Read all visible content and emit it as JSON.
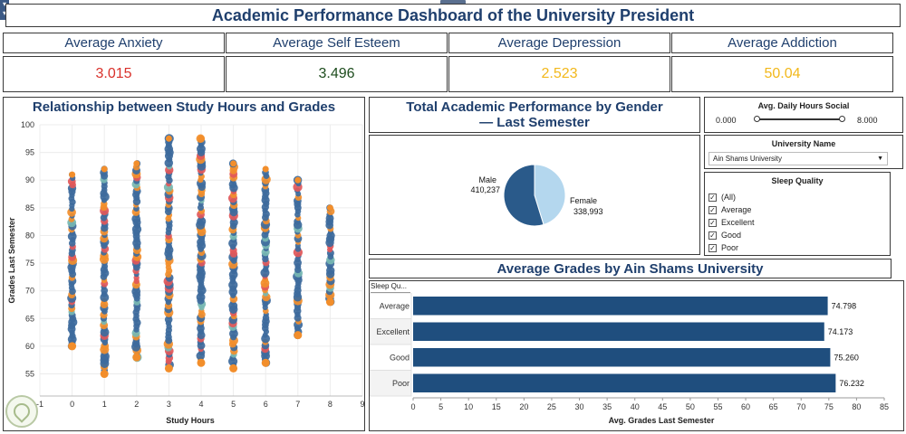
{
  "dashboard": {
    "title": "Academic Performance Dashboard of the University President"
  },
  "kpis": [
    {
      "label": "Average Anxiety",
      "value": "3.015",
      "color": "#d9312b"
    },
    {
      "label": "Average Self Esteem",
      "value": "3.496",
      "color": "#1e4d1e"
    },
    {
      "label": "Average Depression",
      "value": "2.523",
      "color": "#f2b81b"
    },
    {
      "label": "Average Addiction",
      "value": "50.04",
      "color": "#f2b81b"
    }
  ],
  "scatter": {
    "title": "Relationship between Study Hours and Grades"
  },
  "pie": {
    "title": "Total Academic Performance by Gender — Last Semester"
  },
  "filters": {
    "social": {
      "title": "Avg. Daily Hours Social",
      "min": "0.000",
      "max": "8.000",
      "range": [
        0,
        8
      ]
    },
    "university": {
      "title": "University Name",
      "selected": "Ain Shams University"
    },
    "sleep": {
      "title": "Sleep Quality",
      "options": [
        {
          "label": "(All)",
          "checked": true
        },
        {
          "label": "Average",
          "checked": true
        },
        {
          "label": "Excellent",
          "checked": true
        },
        {
          "label": "Good",
          "checked": true
        },
        {
          "label": "Poor",
          "checked": true
        }
      ]
    }
  },
  "bars": {
    "title": "Average Grades by Ain Shams University",
    "row_header": "Sleep Qu..."
  },
  "chart_data": [
    {
      "type": "scatter",
      "title": "Relationship between Study Hours and Grades",
      "xlabel": "Study Hours",
      "ylabel": "Grades Last Semester",
      "xlim": [
        -1,
        9
      ],
      "ylim": [
        51,
        100
      ],
      "x_ticks": [
        "-1",
        "0",
        "1",
        "2",
        "3",
        "4",
        "5",
        "6",
        "7",
        "8",
        "9"
      ],
      "y_ticks": [
        "55",
        "60",
        "65",
        "70",
        "75",
        "80",
        "85",
        "90",
        "95",
        "100"
      ],
      "grid": true,
      "point_colors": [
        "#3d6a9c",
        "#f28e2b",
        "#e15759",
        "#76b7b2",
        "#59a14f"
      ],
      "columns": [
        {
          "x": 0,
          "y_min": 60,
          "y_max": 91
        },
        {
          "x": 1,
          "y_min": 55,
          "y_max": 92
        },
        {
          "x": 2,
          "y_min": 58,
          "y_max": 93
        },
        {
          "x": 3,
          "y_min": 56,
          "y_max": 97.5
        },
        {
          "x": 4,
          "y_min": 57,
          "y_max": 97.5
        },
        {
          "x": 5,
          "y_min": 56,
          "y_max": 93
        },
        {
          "x": 6,
          "y_min": 57,
          "y_max": 92
        },
        {
          "x": 7,
          "y_min": 62,
          "y_max": 90
        },
        {
          "x": 8,
          "y_min": 68,
          "y_max": 85
        }
      ]
    },
    {
      "type": "pie",
      "title": "Total Academic Performance by Gender — Last Semester",
      "slices": [
        {
          "label": "Male",
          "value": 410237,
          "display": "410,237",
          "color": "#2a5a8a"
        },
        {
          "label": "Female",
          "value": 338993,
          "display": "338,993",
          "color": "#b4d7ee"
        }
      ]
    },
    {
      "type": "bar",
      "title": "Average Grades by Ain Shams University",
      "categories": [
        "Average",
        "Excellent",
        "Good",
        "Poor"
      ],
      "values": [
        74.798,
        74.173,
        75.26,
        76.232
      ],
      "value_labels": [
        "74.798",
        "74.173",
        "75.260",
        "76.232"
      ],
      "xlabel": "Avg. Grades Last Semester",
      "xlim": [
        0,
        85
      ],
      "x_ticks": [
        "0",
        "5",
        "10",
        "15",
        "20",
        "25",
        "30",
        "35",
        "40",
        "45",
        "50",
        "55",
        "60",
        "65",
        "70",
        "75",
        "80",
        "85"
      ],
      "bar_color": "#1f4e7e"
    }
  ]
}
